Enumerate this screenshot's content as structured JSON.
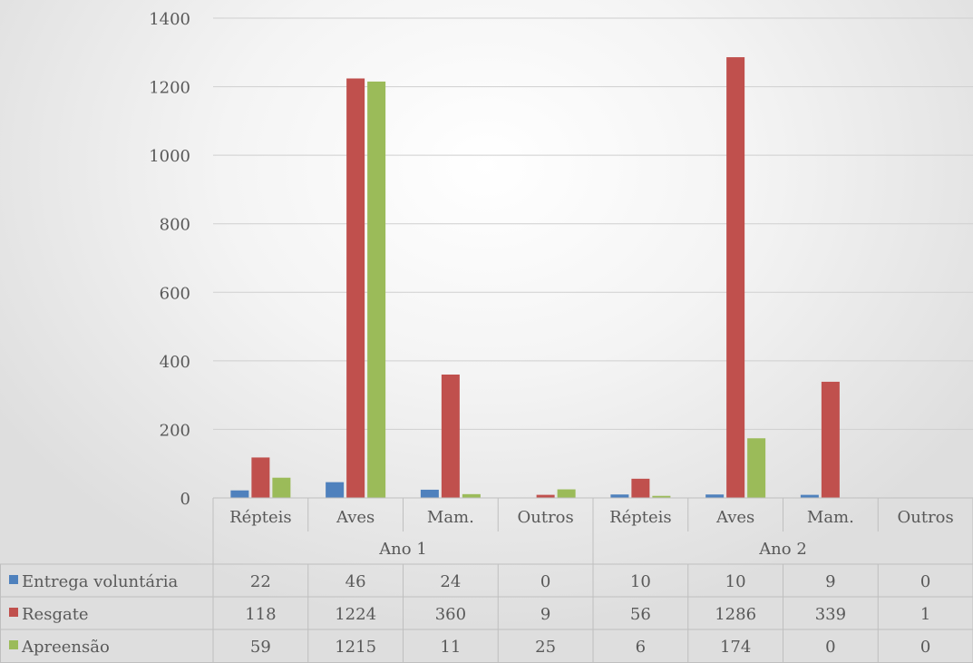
{
  "chart_data": {
    "type": "bar",
    "ylim": [
      0,
      1400
    ],
    "yticks": [
      0,
      200,
      400,
      600,
      800,
      1000,
      1200,
      1400
    ],
    "grid": true,
    "groups": [
      {
        "label": "Ano 1",
        "categories": [
          "Répteis",
          "Aves",
          "Mam.",
          "Outros"
        ]
      },
      {
        "label": "Ano 2",
        "categories": [
          "Répteis",
          "Aves",
          "Mam.",
          "Outros"
        ]
      }
    ],
    "categories": [
      "Répteis",
      "Aves",
      "Mam.",
      "Outros",
      "Répteis",
      "Aves",
      "Mam.",
      "Outros"
    ],
    "series": [
      {
        "name": "Entrega voluntária",
        "color": "#4f81bd",
        "values": [
          22,
          46,
          24,
          0,
          10,
          10,
          9,
          0
        ]
      },
      {
        "name": "Resgate",
        "color": "#c0504d",
        "values": [
          118,
          1224,
          360,
          9,
          56,
          1286,
          339,
          1
        ]
      },
      {
        "name": "Apreensão",
        "color": "#9bbb59",
        "values": [
          59,
          1215,
          11,
          25,
          6,
          174,
          0,
          0
        ]
      }
    ],
    "legend": "data-table"
  }
}
